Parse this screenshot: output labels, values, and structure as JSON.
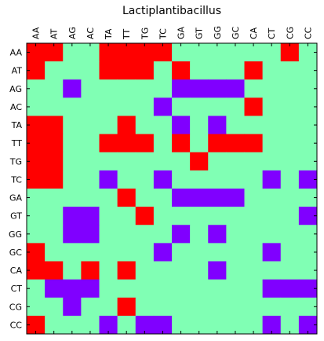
{
  "chart_data": {
    "type": "heatmap",
    "title": "Lactiplantibacillus",
    "x_labels": [
      "AA",
      "AT",
      "AG",
      "AC",
      "TA",
      "TT",
      "TG",
      "TC",
      "GA",
      "GT",
      "GG",
      "GC",
      "CA",
      "CT",
      "CG",
      "CC"
    ],
    "y_labels": [
      "AA",
      "AT",
      "AG",
      "AC",
      "TA",
      "TT",
      "TG",
      "TC",
      "GA",
      "GT",
      "GG",
      "GC",
      "CA",
      "CT",
      "CG",
      "CC"
    ],
    "x_tick_position": "top",
    "grid": false,
    "legend": "none",
    "colors": {
      "0": "#80ffb4",
      "1": "#ff0000",
      "2": "#8000ff"
    },
    "grid_values": [
      [
        1,
        1,
        0,
        0,
        1,
        1,
        1,
        1,
        0,
        0,
        0,
        0,
        0,
        0,
        1,
        0
      ],
      [
        1,
        0,
        0,
        0,
        1,
        1,
        1,
        0,
        1,
        0,
        0,
        0,
        1,
        0,
        0,
        0
      ],
      [
        0,
        0,
        2,
        0,
        0,
        0,
        0,
        0,
        2,
        2,
        2,
        2,
        0,
        0,
        0,
        0
      ],
      [
        0,
        0,
        0,
        0,
        0,
        0,
        0,
        2,
        0,
        0,
        0,
        0,
        1,
        0,
        0,
        0
      ],
      [
        1,
        1,
        0,
        0,
        0,
        1,
        0,
        0,
        2,
        0,
        2,
        0,
        0,
        0,
        0,
        0
      ],
      [
        1,
        1,
        0,
        0,
        1,
        1,
        1,
        0,
        1,
        0,
        1,
        1,
        1,
        0,
        0,
        0
      ],
      [
        1,
        1,
        0,
        0,
        0,
        0,
        0,
        0,
        0,
        1,
        0,
        0,
        0,
        0,
        0,
        0
      ],
      [
        1,
        1,
        0,
        0,
        2,
        0,
        0,
        2,
        0,
        0,
        0,
        0,
        0,
        2,
        0,
        2
      ],
      [
        0,
        0,
        0,
        0,
        0,
        1,
        0,
        0,
        2,
        2,
        2,
        2,
        0,
        0,
        0,
        0
      ],
      [
        0,
        0,
        2,
        2,
        0,
        0,
        1,
        0,
        0,
        0,
        0,
        0,
        0,
        0,
        0,
        2
      ],
      [
        0,
        0,
        2,
        2,
        0,
        0,
        0,
        0,
        2,
        0,
        2,
        0,
        0,
        0,
        0,
        0
      ],
      [
        1,
        0,
        0,
        0,
        0,
        0,
        0,
        2,
        0,
        0,
        0,
        0,
        0,
        2,
        0,
        0
      ],
      [
        1,
        1,
        0,
        1,
        0,
        1,
        0,
        0,
        0,
        0,
        2,
        0,
        0,
        0,
        0,
        0
      ],
      [
        0,
        2,
        2,
        2,
        0,
        0,
        0,
        0,
        0,
        0,
        0,
        0,
        0,
        2,
        2,
        2
      ],
      [
        0,
        0,
        2,
        0,
        0,
        1,
        0,
        0,
        0,
        0,
        0,
        0,
        0,
        0,
        0,
        0
      ],
      [
        1,
        0,
        0,
        0,
        2,
        0,
        2,
        2,
        0,
        0,
        0,
        0,
        0,
        2,
        0,
        2
      ]
    ]
  }
}
